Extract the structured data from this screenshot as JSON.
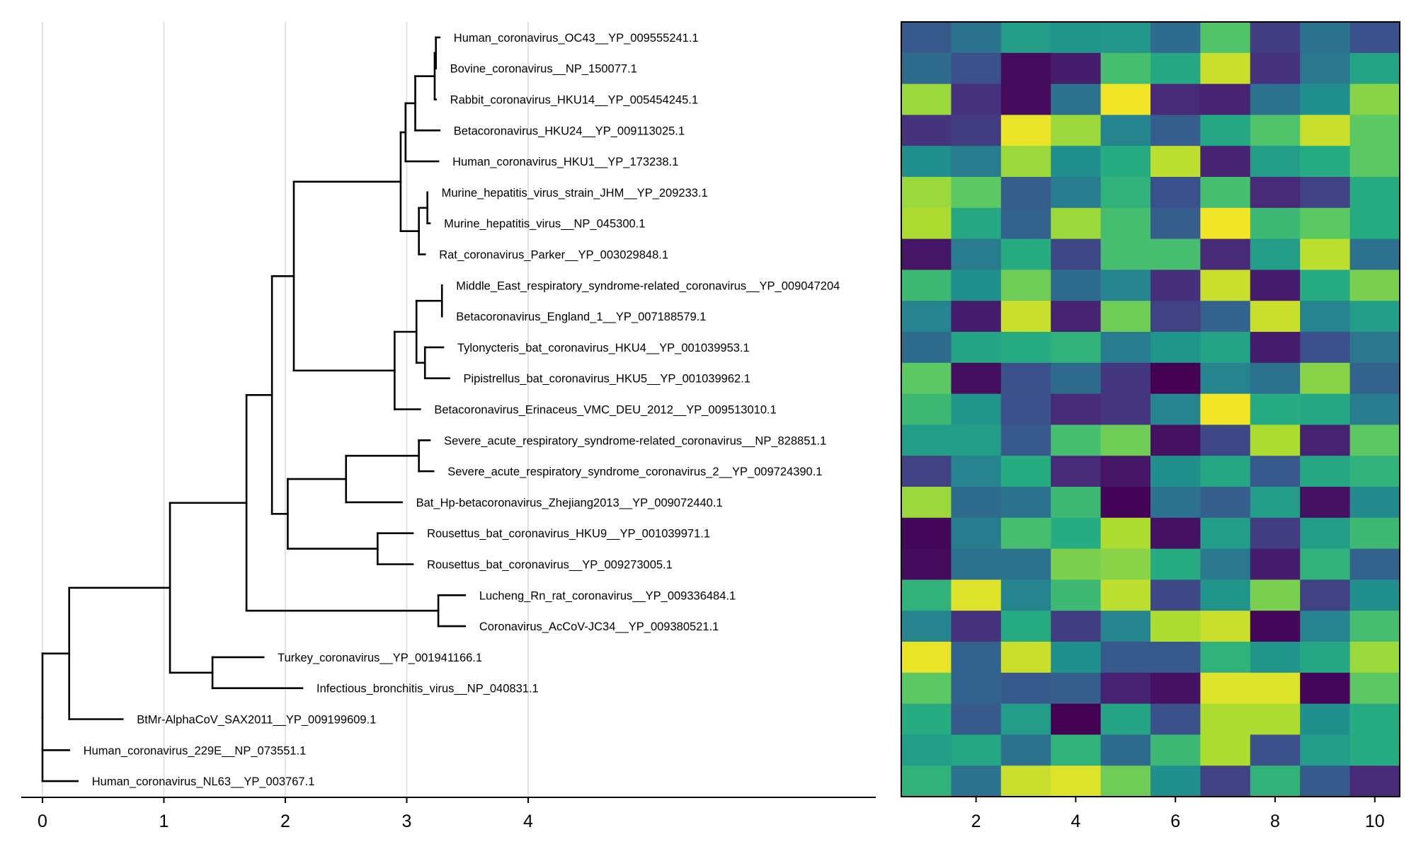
{
  "chart_data": [
    {
      "type": "tree",
      "title": "",
      "xlabel": "",
      "ylabel": "",
      "xlim": [
        0,
        6.9
      ],
      "xticks": [
        0,
        1,
        2,
        3,
        4
      ],
      "grid": true,
      "leaves": [
        {
          "name": "Human_coronavirus_OC43__YP_009555241.1",
          "tip": 3.27
        },
        {
          "name": "Bovine_coronavirus__NP_150077.1",
          "tip": 3.24
        },
        {
          "name": "Rabbit_coronavirus_HKU14__YP_005454245.1",
          "tip": 3.24
        },
        {
          "name": "Betacoronavirus_HKU24__YP_009113025.1",
          "tip": 3.27
        },
        {
          "name": "Human_coronavirus_HKU1__YP_173238.1",
          "tip": 3.26
        },
        {
          "name": "Murine_hepatitis_virus_strain_JHM__YP_209233.1",
          "tip": 3.17
        },
        {
          "name": "Murine_hepatitis_virus__NP_045300.1",
          "tip": 3.19
        },
        {
          "name": "Rat_coronavirus_Parker__YP_003029848.1",
          "tip": 3.15
        },
        {
          "name": "Middle_East_respiratory_syndrome-related_coronavirus__YP_009047204",
          "tip": 3.29
        },
        {
          "name": "Betacoronavirus_England_1__YP_007188579.1",
          "tip": 3.29
        },
        {
          "name": "Tylonycteris_bat_coronavirus_HKU4__YP_001039953.1",
          "tip": 3.3
        },
        {
          "name": "Pipistrellus_bat_coronavirus_HKU5__YP_001039962.1",
          "tip": 3.35
        },
        {
          "name": "Betacoronavirus_Erinaceus_VMC_DEU_2012__YP_009513010.1",
          "tip": 3.11
        },
        {
          "name": "Severe_acute_respiratory_syndrome-related_coronavirus__NP_828851.1",
          "tip": 3.19
        },
        {
          "name": "Severe_acute_respiratory_syndrome_coronavirus_2__YP_009724390.1",
          "tip": 3.22
        },
        {
          "name": "Bat_Hp-betacoronavirus_Zhejiang2013__YP_009072440.1",
          "tip": 2.96
        },
        {
          "name": "Rousettus_bat_coronavirus_HKU9__YP_001039971.1",
          "tip": 3.05
        },
        {
          "name": "Rousettus_bat_coronavirus__YP_009273005.1",
          "tip": 3.05
        },
        {
          "name": "Lucheng_Rn_rat_coronavirus__YP_009336484.1",
          "tip": 3.48
        },
        {
          "name": "Coronavirus_AcCoV-JC34__YP_009380521.1",
          "tip": 3.48
        },
        {
          "name": "Turkey_coronavirus__YP_001941166.1",
          "tip": 1.82
        },
        {
          "name": "Infectious_bronchitis_virus__NP_040831.1",
          "tip": 2.14
        },
        {
          "name": "BtMr-AlphaCoV_SAX2011__YP_009199609.1",
          "tip": 0.66
        },
        {
          "name": "Human_coronavirus_229E__NP_073551.1",
          "tip": 0.22
        },
        {
          "name": "Human_coronavirus_NL63__YP_003767.1",
          "tip": 0.29
        }
      ],
      "internal_nodes": [
        {
          "x": 3.24,
          "children": [
            0,
            1
          ]
        },
        {
          "x": 3.23,
          "children": [
            "n0",
            2
          ]
        },
        {
          "x": 3.07,
          "children": [
            "n1",
            3
          ]
        },
        {
          "x": 2.99,
          "children": [
            "n2",
            4
          ]
        },
        {
          "x": 3.17,
          "children": [
            5,
            6
          ]
        },
        {
          "x": 3.1,
          "children": [
            "n4",
            7
          ]
        },
        {
          "x": 2.95,
          "children": [
            "n3",
            "n5"
          ]
        },
        {
          "x": 3.29,
          "children": [
            8,
            9
          ]
        },
        {
          "x": 3.15,
          "children": [
            10,
            11
          ]
        },
        {
          "x": 3.08,
          "children": [
            "n7",
            "n8"
          ]
        },
        {
          "x": 2.9,
          "children": [
            "n9",
            12
          ]
        },
        {
          "x": 2.07,
          "children": [
            "n6",
            "n10"
          ]
        },
        {
          "x": 3.1,
          "children": [
            13,
            14
          ]
        },
        {
          "x": 2.5,
          "children": [
            "n12",
            15
          ]
        },
        {
          "x": 2.76,
          "children": [
            16,
            17
          ]
        },
        {
          "x": 2.02,
          "children": [
            "n13",
            "n14"
          ]
        },
        {
          "x": 1.89,
          "children": [
            "n11",
            "n15"
          ]
        },
        {
          "x": 3.26,
          "children": [
            18,
            19
          ]
        },
        {
          "x": 1.68,
          "children": [
            "n16",
            "n17"
          ]
        },
        {
          "x": 1.4,
          "children": [
            20,
            21
          ]
        },
        {
          "x": 1.05,
          "children": [
            "n18",
            "n19"
          ]
        },
        {
          "x": 0.22,
          "children": [
            "n20",
            22
          ]
        },
        {
          "x": 0.0,
          "children": [
            "n21",
            23,
            24
          ]
        }
      ]
    },
    {
      "type": "heatmap",
      "title": "",
      "xlabel": "",
      "ylabel": "",
      "xticks": [
        2,
        4,
        6,
        8,
        10
      ],
      "colormap": "viridis",
      "value_range": [
        0,
        1
      ],
      "rows": 25,
      "cols": 10,
      "values": [
        [
          0.28,
          0.38,
          0.55,
          0.52,
          0.53,
          0.35,
          0.72,
          0.18,
          0.38,
          0.25
        ],
        [
          0.35,
          0.25,
          0.03,
          0.08,
          0.7,
          0.6,
          0.92,
          0.15,
          0.4,
          0.58
        ],
        [
          0.85,
          0.15,
          0.03,
          0.38,
          0.98,
          0.12,
          0.1,
          0.38,
          0.5,
          0.82
        ],
        [
          0.15,
          0.18,
          0.97,
          0.85,
          0.45,
          0.3,
          0.6,
          0.72,
          0.92,
          0.75
        ],
        [
          0.5,
          0.42,
          0.85,
          0.5,
          0.62,
          0.9,
          0.1,
          0.55,
          0.62,
          0.75
        ],
        [
          0.85,
          0.75,
          0.3,
          0.42,
          0.65,
          0.25,
          0.7,
          0.12,
          0.2,
          0.62
        ],
        [
          0.88,
          0.6,
          0.32,
          0.85,
          0.7,
          0.3,
          0.98,
          0.68,
          0.75,
          0.62
        ],
        [
          0.06,
          0.42,
          0.62,
          0.22,
          0.7,
          0.7,
          0.12,
          0.55,
          0.9,
          0.38
        ],
        [
          0.68,
          0.5,
          0.78,
          0.35,
          0.45,
          0.14,
          0.92,
          0.08,
          0.62,
          0.8
        ],
        [
          0.45,
          0.08,
          0.92,
          0.1,
          0.78,
          0.2,
          0.32,
          0.92,
          0.45,
          0.55
        ],
        [
          0.35,
          0.58,
          0.62,
          0.65,
          0.42,
          0.52,
          0.58,
          0.08,
          0.25,
          0.4
        ],
        [
          0.75,
          0.04,
          0.25,
          0.35,
          0.16,
          0.0,
          0.45,
          0.38,
          0.82,
          0.32
        ],
        [
          0.68,
          0.52,
          0.25,
          0.12,
          0.16,
          0.45,
          0.98,
          0.62,
          0.6,
          0.42
        ],
        [
          0.55,
          0.55,
          0.28,
          0.7,
          0.78,
          0.05,
          0.22,
          0.88,
          0.1,
          0.75
        ],
        [
          0.2,
          0.45,
          0.62,
          0.12,
          0.06,
          0.5,
          0.6,
          0.28,
          0.6,
          0.65
        ],
        [
          0.85,
          0.35,
          0.38,
          0.68,
          0.01,
          0.38,
          0.3,
          0.55,
          0.05,
          0.48
        ],
        [
          0.02,
          0.42,
          0.7,
          0.62,
          0.88,
          0.05,
          0.55,
          0.18,
          0.55,
          0.68
        ],
        [
          0.03,
          0.38,
          0.38,
          0.8,
          0.82,
          0.62,
          0.4,
          0.08,
          0.65,
          0.32
        ],
        [
          0.65,
          0.95,
          0.45,
          0.68,
          0.9,
          0.22,
          0.52,
          0.8,
          0.2,
          0.5
        ],
        [
          0.45,
          0.15,
          0.62,
          0.18,
          0.45,
          0.88,
          0.92,
          0.02,
          0.45,
          0.7
        ],
        [
          0.97,
          0.32,
          0.92,
          0.5,
          0.28,
          0.28,
          0.65,
          0.52,
          0.6,
          0.85
        ],
        [
          0.75,
          0.32,
          0.28,
          0.3,
          0.1,
          0.05,
          0.95,
          0.95,
          0.02,
          0.75
        ],
        [
          0.62,
          0.28,
          0.55,
          0.0,
          0.58,
          0.25,
          0.88,
          0.88,
          0.5,
          0.62
        ],
        [
          0.55,
          0.6,
          0.38,
          0.65,
          0.35,
          0.68,
          0.88,
          0.25,
          0.55,
          0.62
        ],
        [
          0.65,
          0.38,
          0.92,
          0.95,
          0.78,
          0.5,
          0.2,
          0.65,
          0.28,
          0.12
        ]
      ]
    }
  ]
}
